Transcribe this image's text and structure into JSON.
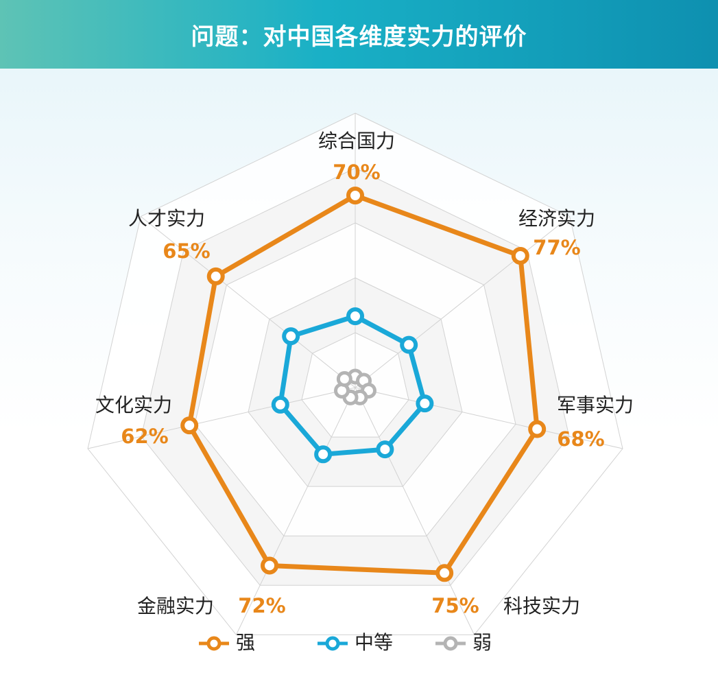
{
  "title": "问题：对中国各维度实力的评价",
  "colors": {
    "strong": "#e8871a",
    "medium": "#1aa8d8",
    "weak": "#b4b4b4",
    "grid": "#d2d2d2"
  },
  "chart_data": {
    "type": "radar",
    "title": "问题：对中国各维度实力的评价",
    "axes": [
      "综合国力",
      "经济实力",
      "军事实力",
      "科技实力",
      "金融实力",
      "文化实力",
      "人才实力"
    ],
    "axis_value_labels": [
      "70%",
      "77%",
      "68%",
      "75%",
      "72%",
      "62%",
      "65%"
    ],
    "rmax": 100,
    "grid_levels": 5,
    "series": [
      {
        "name": "强",
        "color": "#e8871a",
        "values": [
          70,
          77,
          68,
          75,
          72,
          62,
          65
        ]
      },
      {
        "name": "中等",
        "color": "#1aa8d8",
        "values": [
          26,
          25,
          26,
          25,
          27,
          28,
          30
        ]
      },
      {
        "name": "弱",
        "color": "#b4b4b4",
        "values": [
          4,
          4,
          5,
          4,
          4,
          5,
          5
        ]
      }
    ],
    "legend_position": "bottom"
  }
}
